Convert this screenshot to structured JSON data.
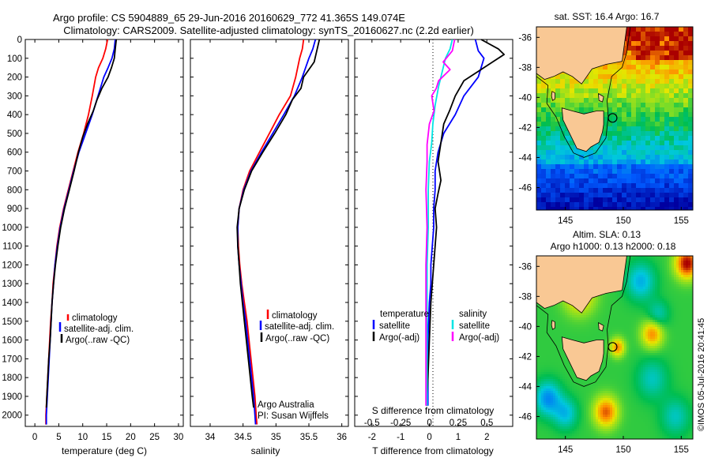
{
  "title_line1": "Argo profile: CS 5904889_65 29-Jun-2016 20160629_772 41.365S 149.074E",
  "title_line2": "Climatology: CARS2009. Satellite-adjusted climatology: synTS_20160627.nc (2.2d earlier)",
  "credit": "©IMOS 05-Jul-2016 20:41:45",
  "colors": {
    "climatology": "#ff0000",
    "satellite": "#0000ff",
    "argo": "#000000",
    "sal_satellite": "#00e5e5",
    "sal_argo": "#ff00ff",
    "land": "#f9c894"
  },
  "chart_data": [
    {
      "type": "line",
      "panel": "temperature",
      "xlabel": "temperature (deg C)",
      "ylabel": "",
      "xlim": [
        -2,
        31
      ],
      "ylim": [
        2060,
        0
      ],
      "xticks": [
        "0",
        "5",
        "10",
        "15",
        "20",
        "25",
        "30"
      ],
      "yticks": [
        "0",
        "100",
        "200",
        "300",
        "400",
        "500",
        "600",
        "700",
        "800",
        "900",
        "1000",
        "1100",
        "1200",
        "1300",
        "1400",
        "1500",
        "1600",
        "1700",
        "1800",
        "1900",
        "2000"
      ],
      "legend": [
        "climatology",
        "satellite-adj. clim.",
        "Argo(..raw -QC)"
      ],
      "series": [
        {
          "name": "climatology",
          "points": [
            [
              15.2,
              0
            ],
            [
              14.8,
              50
            ],
            [
              14.2,
              100
            ],
            [
              13.3,
              150
            ],
            [
              12.7,
              200
            ],
            [
              12.0,
              300
            ],
            [
              11.2,
              400
            ],
            [
              10.2,
              500
            ],
            [
              9.0,
              600
            ],
            [
              8.0,
              700
            ],
            [
              7.0,
              800
            ],
            [
              6.0,
              900
            ],
            [
              5.2,
              1000
            ],
            [
              4.6,
              1100
            ],
            [
              4.2,
              1200
            ],
            [
              3.8,
              1300
            ],
            [
              3.6,
              1400
            ],
            [
              3.3,
              1500
            ],
            [
              3.1,
              1600
            ],
            [
              2.9,
              1700
            ],
            [
              2.7,
              1800
            ],
            [
              2.5,
              1900
            ],
            [
              2.3,
              2000
            ],
            [
              2.3,
              2050
            ]
          ]
        },
        {
          "name": "satellite-adj. clim.",
          "points": [
            [
              16.8,
              0
            ],
            [
              16.6,
              50
            ],
            [
              16.1,
              100
            ],
            [
              15.3,
              150
            ],
            [
              14.4,
              200
            ],
            [
              13.2,
              300
            ],
            [
              12.0,
              400
            ],
            [
              10.6,
              500
            ],
            [
              9.2,
              600
            ],
            [
              8.1,
              700
            ],
            [
              7.1,
              800
            ],
            [
              6.1,
              900
            ],
            [
              5.3,
              1000
            ],
            [
              4.7,
              1100
            ],
            [
              4.2,
              1200
            ],
            [
              3.9,
              1300
            ],
            [
              3.6,
              1400
            ],
            [
              3.4,
              1500
            ],
            [
              3.2,
              1600
            ],
            [
              3.0,
              1700
            ],
            [
              2.8,
              1800
            ],
            [
              2.6,
              1900
            ],
            [
              2.4,
              2000
            ],
            [
              2.4,
              2050
            ]
          ]
        },
        {
          "name": "Argo(..raw -QC)",
          "points": [
            [
              17.0,
              0
            ],
            [
              16.8,
              50
            ],
            [
              16.6,
              100
            ],
            [
              16.0,
              150
            ],
            [
              15.3,
              200
            ],
            [
              14.0,
              260
            ],
            [
              13.0,
              320
            ],
            [
              12.2,
              380
            ],
            [
              11.0,
              450
            ],
            [
              10.0,
              520
            ],
            [
              9.1,
              600
            ],
            [
              8.2,
              700
            ],
            [
              7.2,
              800
            ],
            [
              6.2,
              900
            ],
            [
              5.4,
              1000
            ],
            [
              4.8,
              1100
            ],
            [
              4.3,
              1200
            ],
            [
              3.9,
              1300
            ],
            [
              3.6,
              1400
            ],
            [
              3.4,
              1500
            ],
            [
              3.2,
              1600
            ],
            [
              2.9,
              1700
            ],
            [
              2.7,
              1800
            ],
            [
              2.5,
              1900
            ],
            [
              2.4,
              1960
            ]
          ]
        }
      ]
    },
    {
      "type": "line",
      "panel": "salinity",
      "xlabel": "salinity",
      "xlim": [
        33.7,
        36.1
      ],
      "ylim": [
        2060,
        0
      ],
      "xticks": [
        "34",
        "34.5",
        "35",
        "35.5",
        "36"
      ],
      "legend": [
        "climatology",
        "satellite-adj. clim.",
        "Argo(..raw -QC)"
      ],
      "annotations": [
        "Argo Australia",
        "PI: Susan Wijffels"
      ],
      "series": [
        {
          "name": "climatology",
          "points": [
            [
              35.42,
              0
            ],
            [
              35.4,
              50
            ],
            [
              35.36,
              100
            ],
            [
              35.3,
              200
            ],
            [
              35.22,
              300
            ],
            [
              35.05,
              400
            ],
            [
              34.9,
              500
            ],
            [
              34.75,
              600
            ],
            [
              34.6,
              700
            ],
            [
              34.5,
              800
            ],
            [
              34.44,
              900
            ],
            [
              34.42,
              1000
            ],
            [
              34.43,
              1100
            ],
            [
              34.45,
              1200
            ],
            [
              34.48,
              1300
            ],
            [
              34.52,
              1400
            ],
            [
              34.56,
              1500
            ],
            [
              34.59,
              1600
            ],
            [
              34.62,
              1700
            ],
            [
              34.65,
              1800
            ],
            [
              34.68,
              1900
            ],
            [
              34.7,
              2000
            ],
            [
              34.71,
              2050
            ]
          ]
        },
        {
          "name": "satellite-adj. clim.",
          "points": [
            [
              35.6,
              0
            ],
            [
              35.56,
              50
            ],
            [
              35.5,
              100
            ],
            [
              35.4,
              200
            ],
            [
              35.28,
              300
            ],
            [
              35.12,
              400
            ],
            [
              34.95,
              500
            ],
            [
              34.78,
              600
            ],
            [
              34.62,
              700
            ],
            [
              34.51,
              800
            ],
            [
              34.44,
              900
            ],
            [
              34.42,
              1000
            ],
            [
              34.42,
              1100
            ],
            [
              34.44,
              1200
            ],
            [
              34.47,
              1300
            ],
            [
              34.5,
              1400
            ],
            [
              34.54,
              1500
            ],
            [
              34.57,
              1600
            ],
            [
              34.6,
              1700
            ],
            [
              34.63,
              1800
            ],
            [
              34.66,
              1900
            ],
            [
              34.68,
              2000
            ],
            [
              34.69,
              2050
            ]
          ]
        },
        {
          "name": "Argo(..raw -QC)",
          "points": [
            [
              35.66,
              0
            ],
            [
              35.62,
              60
            ],
            [
              35.58,
              120
            ],
            [
              35.42,
              200
            ],
            [
              35.38,
              260
            ],
            [
              35.25,
              320
            ],
            [
              35.15,
              400
            ],
            [
              34.98,
              500
            ],
            [
              34.8,
              600
            ],
            [
              34.63,
              700
            ],
            [
              34.52,
              800
            ],
            [
              34.44,
              900
            ],
            [
              34.41,
              1000
            ],
            [
              34.42,
              1100
            ],
            [
              34.44,
              1200
            ],
            [
              34.46,
              1300
            ],
            [
              34.49,
              1400
            ],
            [
              34.52,
              1500
            ],
            [
              34.55,
              1600
            ],
            [
              34.58,
              1700
            ],
            [
              34.61,
              1800
            ],
            [
              34.64,
              1900
            ],
            [
              34.66,
              1960
            ]
          ]
        }
      ]
    },
    {
      "type": "line",
      "panel": "difference",
      "xlabel": "T difference from climatology",
      "xlabel2": "S difference from climatology",
      "xlim": [
        -2.6,
        2.9
      ],
      "xlim_S": [
        -0.65,
        0.725
      ],
      "ylim": [
        2060,
        0
      ],
      "xticks": [
        "-2",
        "-1",
        "0",
        "1",
        "2"
      ],
      "xticks_S": [
        "-0.5",
        "-0.25",
        "0",
        "0.25",
        "0.5"
      ],
      "legend": {
        "temperature_title": "temperature",
        "salinity_title": "salinity",
        "items": [
          "satellite",
          "Argo(-adj)",
          "satellite",
          "Argo(-adj)"
        ]
      },
      "series": [
        {
          "name": "satellite",
          "quantity": "T",
          "points": [
            [
              1.6,
              0
            ],
            [
              1.7,
              60
            ],
            [
              1.9,
              100
            ],
            [
              1.7,
              200
            ],
            [
              1.2,
              300
            ],
            [
              0.9,
              400
            ],
            [
              0.5,
              500
            ],
            [
              0.3,
              600
            ],
            [
              0.2,
              700
            ],
            [
              0.2,
              800
            ],
            [
              0.15,
              900
            ],
            [
              0.15,
              1000
            ],
            [
              0.1,
              1100
            ],
            [
              0.05,
              1200
            ],
            [
              0.05,
              1300
            ],
            [
              0.0,
              1400
            ],
            [
              -0.05,
              1600
            ],
            [
              -0.05,
              1800
            ],
            [
              -0.05,
              1950
            ]
          ]
        },
        {
          "name": "Argo(-adj)",
          "quantity": "T",
          "points": [
            [
              1.8,
              0
            ],
            [
              2.4,
              50
            ],
            [
              2.6,
              80
            ],
            [
              2.2,
              120
            ],
            [
              1.7,
              170
            ],
            [
              1.2,
              220
            ],
            [
              0.9,
              300
            ],
            [
              0.7,
              380
            ],
            [
              0.5,
              450
            ],
            [
              0.4,
              550
            ],
            [
              0.3,
              650
            ],
            [
              0.4,
              750
            ],
            [
              0.3,
              820
            ],
            [
              0.2,
              900
            ],
            [
              0.25,
              1000
            ],
            [
              0.2,
              1100
            ],
            [
              0.15,
              1200
            ],
            [
              0.1,
              1300
            ],
            [
              0.05,
              1400
            ],
            [
              0.0,
              1600
            ],
            [
              -0.05,
              1800
            ],
            [
              -0.1,
              1950
            ]
          ]
        },
        {
          "name": "satellite",
          "quantity": "S",
          "points": [
            [
              0.2,
              0
            ],
            [
              0.18,
              50
            ],
            [
              0.14,
              100
            ],
            [
              0.12,
              150
            ],
            [
              0.08,
              250
            ],
            [
              0.05,
              350
            ],
            [
              0.03,
              450
            ],
            [
              0.02,
              550
            ],
            [
              0.0,
              650
            ],
            [
              -0.01,
              800
            ],
            [
              -0.01,
              1000
            ],
            [
              -0.02,
              1200
            ],
            [
              -0.02,
              1500
            ],
            [
              -0.02,
              1800
            ],
            [
              -0.02,
              1950
            ]
          ]
        },
        {
          "name": "Argo(-adj)",
          "quantity": "S",
          "points": [
            [
              0.22,
              0
            ],
            [
              0.2,
              60
            ],
            [
              0.12,
              120
            ],
            [
              0.18,
              160
            ],
            [
              0.08,
              220
            ],
            [
              0.06,
              260
            ],
            [
              0.02,
              300
            ],
            [
              0.04,
              380
            ],
            [
              0.0,
              450
            ],
            [
              -0.02,
              560
            ],
            [
              -0.02,
              650
            ],
            [
              -0.03,
              800
            ],
            [
              -0.02,
              1000
            ],
            [
              -0.03,
              1200
            ],
            [
              -0.03,
              1500
            ],
            [
              -0.03,
              1800
            ],
            [
              -0.03,
              1950
            ]
          ]
        }
      ]
    },
    {
      "type": "heatmap",
      "panel": "sst_map",
      "title": "sat. SST: 16.4  Argo: 16.7",
      "xlim": [
        142.5,
        156
      ],
      "ylim": [
        -47.5,
        -35.3
      ],
      "xticks": [
        "145",
        "150",
        "155"
      ],
      "yticks": [
        "-36",
        "-38",
        "-40",
        "-42",
        "-44",
        "-46"
      ],
      "marker": {
        "lon": 149.074,
        "lat": -41.365
      }
    },
    {
      "type": "heatmap",
      "panel": "sla_map",
      "title_line1": "Altim. SLA: 0.13",
      "title_line2": "Argo h1000: 0.13 h2000: 0.18",
      "xlim": [
        142.5,
        156
      ],
      "ylim": [
        -47.5,
        -35.3
      ],
      "xticks": [
        "145",
        "150",
        "155"
      ],
      "yticks": [
        "-36",
        "-38",
        "-40",
        "-42",
        "-44",
        "-46"
      ],
      "marker": {
        "lon": 149.074,
        "lat": -41.365
      }
    }
  ]
}
